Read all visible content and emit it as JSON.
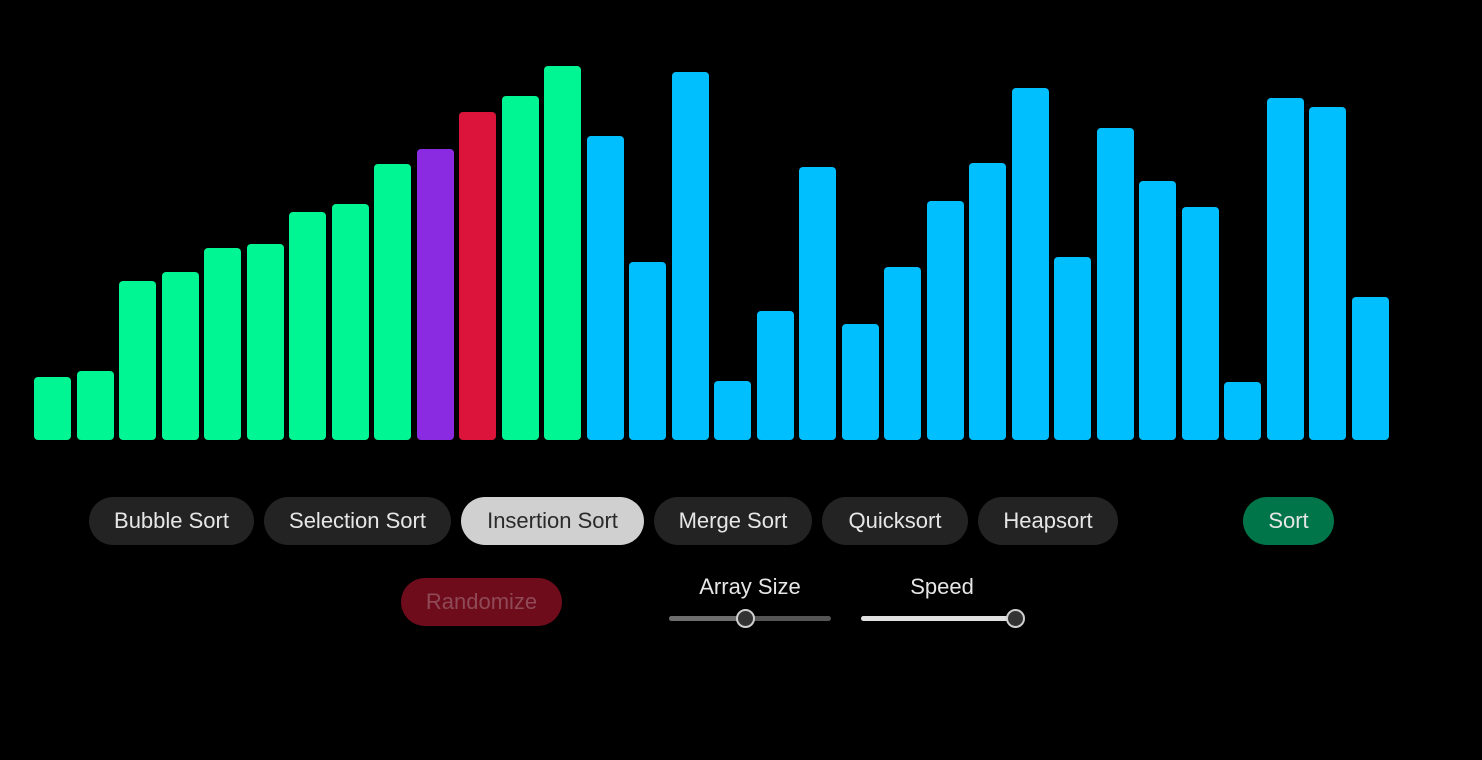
{
  "colors": {
    "background": "#000000",
    "sorted": "#00f593",
    "comparing": "#8a2be2",
    "current": "#dc143c",
    "unsorted": "#00bfff",
    "button_bg": "#232323",
    "button_active_bg": "#d0d0d0",
    "sort_button_bg": "#00754a",
    "randomize_button_bg": "#6e0c1c"
  },
  "bars": [
    {
      "value": 63,
      "state": "sorted"
    },
    {
      "value": 69,
      "state": "sorted"
    },
    {
      "value": 159,
      "state": "sorted"
    },
    {
      "value": 168,
      "state": "sorted"
    },
    {
      "value": 192,
      "state": "sorted"
    },
    {
      "value": 196,
      "state": "sorted"
    },
    {
      "value": 228,
      "state": "sorted"
    },
    {
      "value": 236,
      "state": "sorted"
    },
    {
      "value": 276,
      "state": "sorted"
    },
    {
      "value": 291,
      "state": "comparing"
    },
    {
      "value": 328,
      "state": "current"
    },
    {
      "value": 344,
      "state": "sorted"
    },
    {
      "value": 374,
      "state": "sorted"
    },
    {
      "value": 304,
      "state": "unsorted"
    },
    {
      "value": 178,
      "state": "unsorted"
    },
    {
      "value": 368,
      "state": "unsorted"
    },
    {
      "value": 59,
      "state": "unsorted"
    },
    {
      "value": 129,
      "state": "unsorted"
    },
    {
      "value": 273,
      "state": "unsorted"
    },
    {
      "value": 116,
      "state": "unsorted"
    },
    {
      "value": 173,
      "state": "unsorted"
    },
    {
      "value": 239,
      "state": "unsorted"
    },
    {
      "value": 277,
      "state": "unsorted"
    },
    {
      "value": 352,
      "state": "unsorted"
    },
    {
      "value": 183,
      "state": "unsorted"
    },
    {
      "value": 312,
      "state": "unsorted"
    },
    {
      "value": 259,
      "state": "unsorted"
    },
    {
      "value": 233,
      "state": "unsorted"
    },
    {
      "value": 58,
      "state": "unsorted"
    },
    {
      "value": 342,
      "state": "unsorted"
    },
    {
      "value": 333,
      "state": "unsorted"
    },
    {
      "value": 143,
      "state": "unsorted"
    }
  ],
  "algorithms": {
    "bubble": "Bubble Sort",
    "selection": "Selection Sort",
    "insertion": "Insertion Sort",
    "merge": "Merge Sort",
    "quick": "Quicksort",
    "heap": "Heapsort",
    "selected": "Insertion Sort"
  },
  "actions": {
    "sort": "Sort",
    "randomize": "Randomize"
  },
  "controls": {
    "array_size": {
      "label": "Array Size",
      "value_fraction": 0.47
    },
    "speed": {
      "label": "Speed",
      "value_fraction": 0.95
    }
  }
}
